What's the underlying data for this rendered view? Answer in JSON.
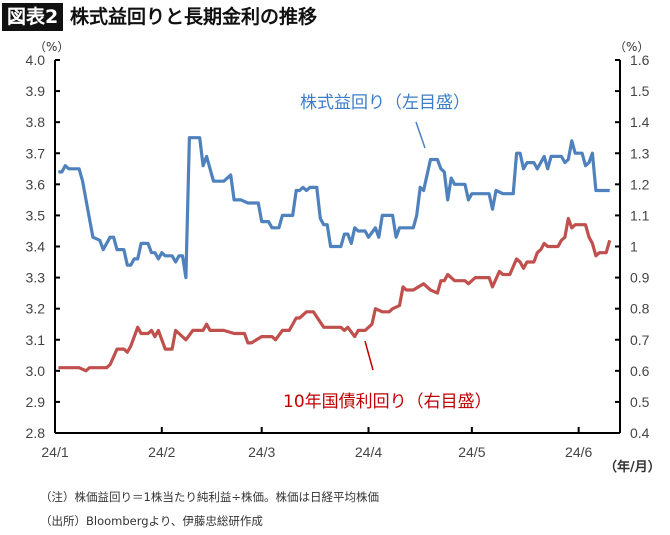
{
  "header": {
    "badge": "図表2",
    "title": "株式益回りと長期金利の推移"
  },
  "notes": {
    "note": "（注）株価益回り＝1株当たり純利益÷株価。株価は日経平均株価",
    "source": "（出所）Bloombergより、伊藤忠総研作成"
  },
  "chart_data": {
    "type": "line",
    "title": "株式益回りと長期金利の推移",
    "left_unit": "（%）",
    "right_unit": "（%）",
    "x_unit": "（年/月）",
    "x_range": [
      "2024-01-01",
      "2024-06-13"
    ],
    "x_ticks": [
      {
        "date": "2024-01-01",
        "label": "24/1"
      },
      {
        "date": "2024-02-01",
        "label": "24/2"
      },
      {
        "date": "2024-03-01",
        "label": "24/3"
      },
      {
        "date": "2024-04-01",
        "label": "24/4"
      },
      {
        "date": "2024-05-01",
        "label": "24/5"
      },
      {
        "date": "2024-06-01",
        "label": "24/6"
      }
    ],
    "y_left": {
      "range": [
        2.8,
        4.0
      ],
      "ticks": [
        "4.0",
        "3.9",
        "3.8",
        "3.7",
        "3.6",
        "3.5",
        "3.4",
        "3.3",
        "3.2",
        "3.1",
        "3.0",
        "2.9",
        "2.8"
      ]
    },
    "y_right": {
      "range": [
        0.4,
        1.6
      ],
      "ticks": [
        "1.6",
        "1.5",
        "1.4",
        "1.3",
        "1.2",
        "1.1",
        "1",
        "0.9",
        "0.8",
        "0.7",
        "0.6",
        "0.5",
        "0.4"
      ]
    },
    "grid": false,
    "series": [
      {
        "name": "株式益回り（左目盛）",
        "axis": "left",
        "color": "#4F81BD",
        "label_color": "#3D7CC9",
        "points": [
          [
            "2024-01-02",
            3.64
          ],
          [
            "2024-01-03",
            3.64
          ],
          [
            "2024-01-04",
            3.66
          ],
          [
            "2024-01-05",
            3.65
          ],
          [
            "2024-01-08",
            3.65
          ],
          [
            "2024-01-09",
            3.61
          ],
          [
            "2024-01-10",
            3.55
          ],
          [
            "2024-01-12",
            3.43
          ],
          [
            "2024-01-14",
            3.42
          ],
          [
            "2024-01-15",
            3.39
          ],
          [
            "2024-01-17",
            3.43
          ],
          [
            "2024-01-18",
            3.43
          ],
          [
            "2024-01-19",
            3.39
          ],
          [
            "2024-01-21",
            3.39
          ],
          [
            "2024-01-22",
            3.34
          ],
          [
            "2024-01-23",
            3.34
          ],
          [
            "2024-01-24",
            3.36
          ],
          [
            "2024-01-25",
            3.36
          ],
          [
            "2024-01-26",
            3.41
          ],
          [
            "2024-01-28",
            3.41
          ],
          [
            "2024-01-29",
            3.38
          ],
          [
            "2024-01-30",
            3.38
          ],
          [
            "2024-01-31",
            3.36
          ],
          [
            "2024-02-01",
            3.38
          ],
          [
            "2024-02-02",
            3.37
          ],
          [
            "2024-02-04",
            3.37
          ],
          [
            "2024-02-05",
            3.35
          ],
          [
            "2024-02-06",
            3.37
          ],
          [
            "2024-02-07",
            3.37
          ],
          [
            "2024-02-08",
            3.3
          ],
          [
            "2024-02-09",
            3.75
          ],
          [
            "2024-02-12",
            3.75
          ],
          [
            "2024-02-13",
            3.66
          ],
          [
            "2024-02-14",
            3.69
          ],
          [
            "2024-02-16",
            3.61
          ],
          [
            "2024-02-19",
            3.61
          ],
          [
            "2024-02-20",
            3.62
          ],
          [
            "2024-02-21",
            3.63
          ],
          [
            "2024-02-22",
            3.55
          ],
          [
            "2024-02-24",
            3.55
          ],
          [
            "2024-02-26",
            3.54
          ],
          [
            "2024-02-29",
            3.54
          ],
          [
            "2024-03-01",
            3.48
          ],
          [
            "2024-03-03",
            3.48
          ],
          [
            "2024-03-04",
            3.46
          ],
          [
            "2024-03-06",
            3.46
          ],
          [
            "2024-03-07",
            3.5
          ],
          [
            "2024-03-08",
            3.5
          ],
          [
            "2024-03-10",
            3.5
          ],
          [
            "2024-03-11",
            3.58
          ],
          [
            "2024-03-12",
            3.58
          ],
          [
            "2024-03-13",
            3.59
          ],
          [
            "2024-03-14",
            3.58
          ],
          [
            "2024-03-15",
            3.59
          ],
          [
            "2024-03-17",
            3.59
          ],
          [
            "2024-03-18",
            3.49
          ],
          [
            "2024-03-19",
            3.47
          ],
          [
            "2024-03-20",
            3.47
          ],
          [
            "2024-03-21",
            3.4
          ],
          [
            "2024-03-24",
            3.4
          ],
          [
            "2024-03-25",
            3.44
          ],
          [
            "2024-03-26",
            3.44
          ],
          [
            "2024-03-27",
            3.41
          ],
          [
            "2024-03-28",
            3.46
          ],
          [
            "2024-03-29",
            3.45
          ],
          [
            "2024-03-31",
            3.45
          ],
          [
            "2024-04-01",
            3.43
          ],
          [
            "2024-04-03",
            3.46
          ],
          [
            "2024-04-04",
            3.43
          ],
          [
            "2024-04-05",
            3.5
          ],
          [
            "2024-04-08",
            3.5
          ],
          [
            "2024-04-09",
            3.43
          ],
          [
            "2024-04-10",
            3.46
          ],
          [
            "2024-04-14",
            3.46
          ],
          [
            "2024-04-15",
            3.5
          ],
          [
            "2024-04-16",
            3.59
          ],
          [
            "2024-04-17",
            3.58
          ],
          [
            "2024-04-19",
            3.68
          ],
          [
            "2024-04-21",
            3.68
          ],
          [
            "2024-04-22",
            3.65
          ],
          [
            "2024-04-23",
            3.64
          ],
          [
            "2024-04-24",
            3.55
          ],
          [
            "2024-04-25",
            3.62
          ],
          [
            "2024-04-26",
            3.6
          ],
          [
            "2024-04-29",
            3.6
          ],
          [
            "2024-04-30",
            3.55
          ],
          [
            "2024-05-01",
            3.57
          ],
          [
            "2024-05-06",
            3.57
          ],
          [
            "2024-05-07",
            3.52
          ],
          [
            "2024-05-08",
            3.58
          ],
          [
            "2024-05-10",
            3.57
          ],
          [
            "2024-05-13",
            3.57
          ],
          [
            "2024-05-14",
            3.7
          ],
          [
            "2024-05-15",
            3.7
          ],
          [
            "2024-05-16",
            3.65
          ],
          [
            "2024-05-17",
            3.67
          ],
          [
            "2024-05-19",
            3.67
          ],
          [
            "2024-05-20",
            3.65
          ],
          [
            "2024-05-22",
            3.69
          ],
          [
            "2024-05-23",
            3.65
          ],
          [
            "2024-05-24",
            3.69
          ],
          [
            "2024-05-27",
            3.69
          ],
          [
            "2024-05-28",
            3.67
          ],
          [
            "2024-05-29",
            3.68
          ],
          [
            "2024-05-30",
            3.74
          ],
          [
            "2024-05-31",
            3.7
          ],
          [
            "2024-06-02",
            3.7
          ],
          [
            "2024-06-03",
            3.66
          ],
          [
            "2024-06-04",
            3.67
          ],
          [
            "2024-06-05",
            3.7
          ],
          [
            "2024-06-06",
            3.58
          ],
          [
            "2024-06-10",
            3.58
          ]
        ]
      },
      {
        "name": "10年国債利回り（右目盛）",
        "axis": "right",
        "color": "#C0504D",
        "label_color": "#C00000",
        "points": [
          [
            "2024-01-02",
            0.61
          ],
          [
            "2024-01-03",
            0.61
          ],
          [
            "2024-01-05",
            0.61
          ],
          [
            "2024-01-08",
            0.61
          ],
          [
            "2024-01-10",
            0.6
          ],
          [
            "2024-01-11",
            0.61
          ],
          [
            "2024-01-14",
            0.61
          ],
          [
            "2024-01-16",
            0.61
          ],
          [
            "2024-01-17",
            0.62
          ],
          [
            "2024-01-19",
            0.67
          ],
          [
            "2024-01-21",
            0.67
          ],
          [
            "2024-01-22",
            0.66
          ],
          [
            "2024-01-23",
            0.68
          ],
          [
            "2024-01-25",
            0.74
          ],
          [
            "2024-01-26",
            0.72
          ],
          [
            "2024-01-28",
            0.72
          ],
          [
            "2024-01-29",
            0.73
          ],
          [
            "2024-01-30",
            0.71
          ],
          [
            "2024-01-31",
            0.73
          ],
          [
            "2024-02-02",
            0.67
          ],
          [
            "2024-02-04",
            0.67
          ],
          [
            "2024-02-05",
            0.73
          ],
          [
            "2024-02-06",
            0.72
          ],
          [
            "2024-02-08",
            0.7
          ],
          [
            "2024-02-10",
            0.73
          ],
          [
            "2024-02-13",
            0.73
          ],
          [
            "2024-02-14",
            0.75
          ],
          [
            "2024-02-15",
            0.73
          ],
          [
            "2024-02-19",
            0.73
          ],
          [
            "2024-02-22",
            0.72
          ],
          [
            "2024-02-25",
            0.72
          ],
          [
            "2024-02-26",
            0.69
          ],
          [
            "2024-02-27",
            0.69
          ],
          [
            "2024-03-01",
            0.71
          ],
          [
            "2024-03-04",
            0.71
          ],
          [
            "2024-03-05",
            0.7
          ],
          [
            "2024-03-07",
            0.73
          ],
          [
            "2024-03-09",
            0.73
          ],
          [
            "2024-03-11",
            0.77
          ],
          [
            "2024-03-12",
            0.77
          ],
          [
            "2024-03-14",
            0.79
          ],
          [
            "2024-03-16",
            0.79
          ],
          [
            "2024-03-19",
            0.74
          ],
          [
            "2024-03-20",
            0.74
          ],
          [
            "2024-03-24",
            0.74
          ],
          [
            "2024-03-25",
            0.73
          ],
          [
            "2024-03-26",
            0.74
          ],
          [
            "2024-03-28",
            0.71
          ],
          [
            "2024-03-29",
            0.73
          ],
          [
            "2024-03-31",
            0.73
          ],
          [
            "2024-04-02",
            0.75
          ],
          [
            "2024-04-03",
            0.8
          ],
          [
            "2024-04-05",
            0.79
          ],
          [
            "2024-04-07",
            0.79
          ],
          [
            "2024-04-08",
            0.8
          ],
          [
            "2024-04-10",
            0.81
          ],
          [
            "2024-04-11",
            0.87
          ],
          [
            "2024-04-12",
            0.86
          ],
          [
            "2024-04-14",
            0.86
          ],
          [
            "2024-04-17",
            0.88
          ],
          [
            "2024-04-19",
            0.86
          ],
          [
            "2024-04-21",
            0.85
          ],
          [
            "2024-04-22",
            0.89
          ],
          [
            "2024-04-23",
            0.89
          ],
          [
            "2024-04-24",
            0.91
          ],
          [
            "2024-04-26",
            0.89
          ],
          [
            "2024-04-29",
            0.89
          ],
          [
            "2024-04-30",
            0.88
          ],
          [
            "2024-05-02",
            0.9
          ],
          [
            "2024-05-06",
            0.9
          ],
          [
            "2024-05-07",
            0.87
          ],
          [
            "2024-05-09",
            0.92
          ],
          [
            "2024-05-10",
            0.91
          ],
          [
            "2024-05-12",
            0.91
          ],
          [
            "2024-05-14",
            0.96
          ],
          [
            "2024-05-15",
            0.95
          ],
          [
            "2024-05-16",
            0.93
          ],
          [
            "2024-05-17",
            0.95
          ],
          [
            "2024-05-19",
            0.95
          ],
          [
            "2024-05-20",
            0.98
          ],
          [
            "2024-05-21",
            0.99
          ],
          [
            "2024-05-22",
            1.01
          ],
          [
            "2024-05-23",
            1.0
          ],
          [
            "2024-05-26",
            1.0
          ],
          [
            "2024-05-27",
            1.02
          ],
          [
            "2024-05-28",
            1.03
          ],
          [
            "2024-05-29",
            1.09
          ],
          [
            "2024-05-30",
            1.06
          ],
          [
            "2024-05-31",
            1.07
          ],
          [
            "2024-06-03",
            1.07
          ],
          [
            "2024-06-04",
            1.03
          ],
          [
            "2024-06-05",
            1.01
          ],
          [
            "2024-06-06",
            0.97
          ],
          [
            "2024-06-07",
            0.98
          ],
          [
            "2024-06-09",
            0.98
          ],
          [
            "2024-06-10",
            1.02
          ]
        ]
      }
    ]
  }
}
